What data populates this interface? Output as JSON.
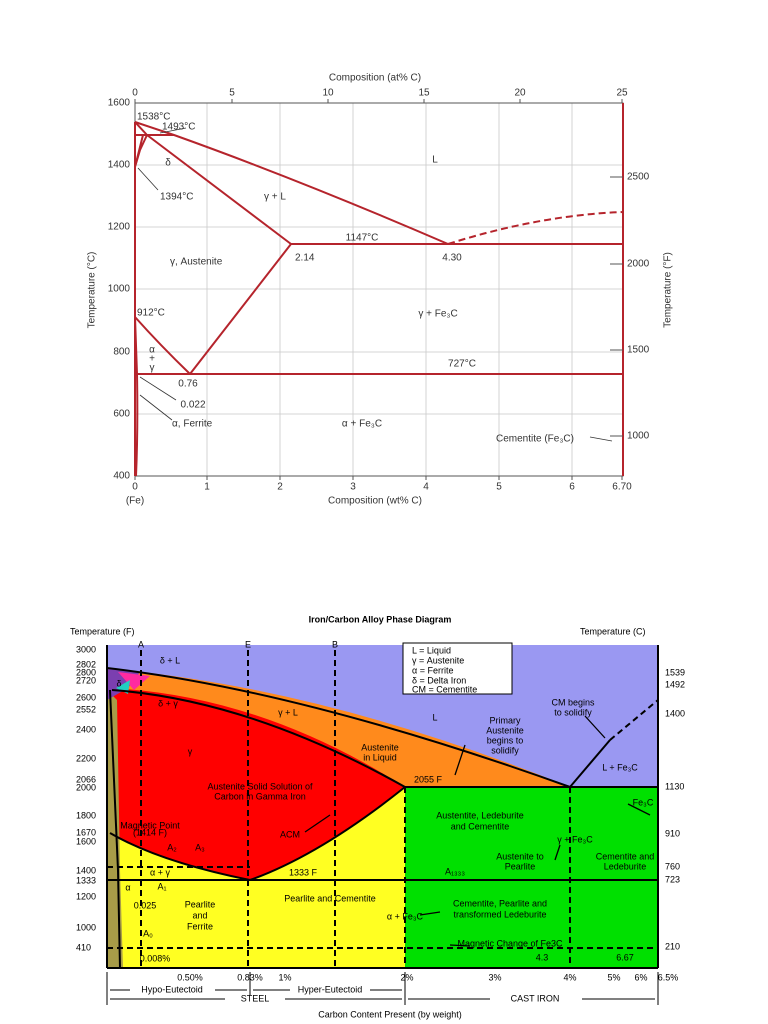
{
  "diagram1": {
    "top_axis_title": "Composition (at% C)",
    "top_ticks": [
      "0",
      "5",
      "10",
      "15",
      "20",
      "25"
    ],
    "bottom_axis_title": "Composition (wt% C)",
    "bottom_ticks": [
      "0",
      "1",
      "2",
      "3",
      "4",
      "5",
      "6",
      "6.70"
    ],
    "bottom_end_label": "(Fe)",
    "left_axis_title": "Temperature (°C)",
    "left_ticks": [
      "1600",
      "1400",
      "1200",
      "1000",
      "800",
      "600",
      "400"
    ],
    "right_axis_title": "Temperature (°F)",
    "right_ticks": [
      "2500",
      "2000",
      "1500",
      "1000"
    ],
    "labels": [
      "1538°C",
      "1493°C",
      "δ",
      "1394°C",
      "L",
      "γ + L",
      "1147°C",
      "2.14",
      "4.30",
      "γ, Austenite",
      "912°C",
      "γ + Fe₃C",
      "α",
      "+",
      "γ",
      "727°C",
      "0.76",
      "0.022",
      "α, Ferrite",
      "α + Fe₃C",
      "Cementite (Fe₃C)"
    ]
  },
  "diagram2": {
    "title": "Iron/Carbon Alloy Phase Diagram",
    "left_axis_title": "Temperature (F)",
    "right_axis_title": "Temperature (C)",
    "left_ticks": [
      "3000",
      "2802",
      "2800",
      "2720",
      "2600",
      "2552",
      "2400",
      "2200",
      "2066",
      "2000",
      "1800",
      "1670",
      "1600",
      "1400",
      "1333",
      "1200",
      "1000",
      "410"
    ],
    "right_ticks": [
      "1539",
      "1492",
      "1400",
      "1130",
      "910",
      "760",
      "723",
      "210"
    ],
    "bottom_ticks": [
      "0.50%",
      "0.83%",
      "1%",
      "2%",
      "3%",
      "4%",
      "5%",
      "6%",
      "6.5%"
    ],
    "line_labels": [
      "A",
      "E",
      "B"
    ],
    "legend": [
      "L = Liquid",
      "γ = Austenite",
      "α = Ferrite",
      "δ = Delta Iron",
      "CM = Cementite"
    ],
    "labels": [
      "δ + L",
      "δ",
      "δ + γ",
      "γ + L",
      "L",
      "Primary",
      "Austenite",
      "begins to",
      "solidify",
      "CM begins",
      "to solidify",
      "Austenite",
      "in Liquid",
      "2055 F",
      "L + Fe₃C",
      "γ",
      "Austenite Solid Solution of",
      "Carbon in Gamma Iron",
      "Magnetic Point",
      "(1414 F)",
      "A₂",
      "A₃",
      "ACM",
      "Austentite, Ledeburite",
      "and Cementite",
      "Fe₃C",
      "γ + Fe₃C",
      "Austenite to",
      "Pearlite",
      "Cementite and",
      "Ledeburite",
      "A₁₃₃₃",
      "1333 F",
      "α + γ",
      "A₁",
      "α",
      "0.025",
      "Pearlite",
      "and",
      "Ferrite",
      "Pearlite and Cementite",
      "α + Fe₃C",
      "Cementite, Pearlite and",
      "transformed Ledeburite",
      "A₀",
      "Magnetic Change of Fe3C",
      "0.008%",
      "4.3",
      "6.67"
    ],
    "bottom_brackets": [
      "Hypo-Eutectoid",
      "Hyper-Eutectoid",
      "STEEL",
      "CAST IRON"
    ],
    "x_axis_title": "Carbon Content Present (by weight)"
  }
}
